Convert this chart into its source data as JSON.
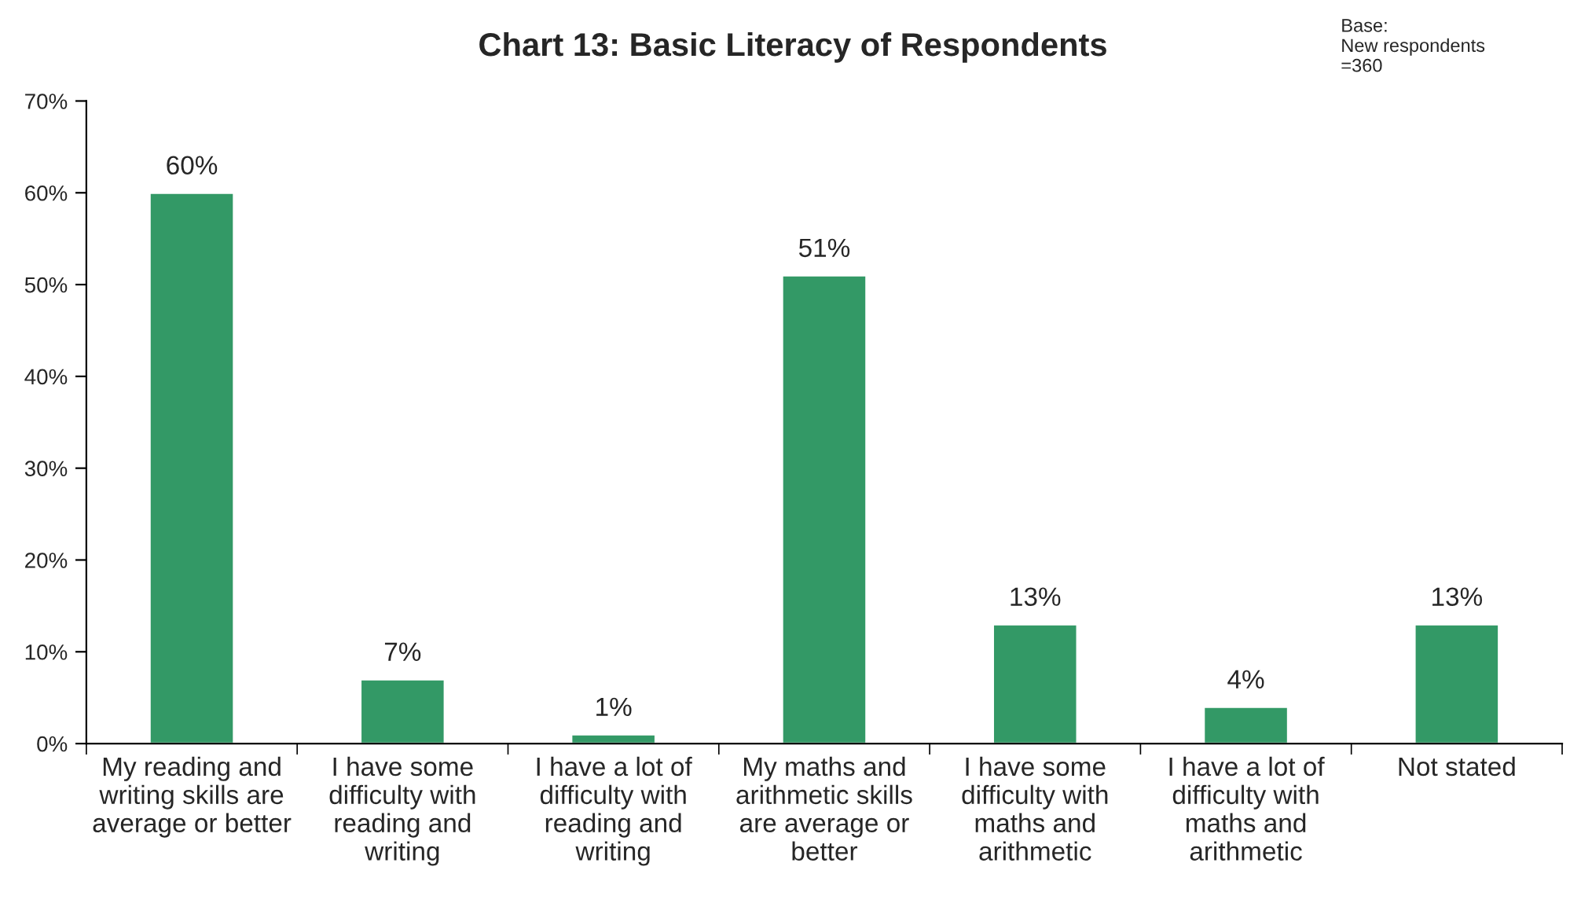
{
  "chart_data": {
    "type": "bar",
    "title": "Chart 13: Basic Literacy of Respondents",
    "annotations": [
      "Base:\nNew respondents\n=360"
    ],
    "categories": [
      "My reading and\nwriting skills are\naverage or better",
      "I have some\ndifficulty with\nreading and\nwriting",
      "I have a lot of\ndifficulty with\nreading and\nwriting",
      "My maths and\narithmetic skills\nare average or\nbetter",
      "I have some\ndifficulty with\nmaths and\narithmetic",
      "I have a lot of\ndifficulty with\nmaths and\narithmetic",
      "Not stated"
    ],
    "values": [
      60,
      7,
      1,
      51,
      13,
      4,
      13
    ],
    "value_labels": [
      "60%",
      "7%",
      "1%",
      "51%",
      "13%",
      "4%",
      "13%"
    ],
    "color": "#339966",
    "ylim": [
      0,
      70
    ],
    "yticks": [
      {
        "value": 0,
        "label": "0%"
      },
      {
        "value": 10,
        "label": "10%"
      },
      {
        "value": 20,
        "label": "20%"
      },
      {
        "value": 30,
        "label": "30%"
      },
      {
        "value": 40,
        "label": "40%"
      },
      {
        "value": 50,
        "label": "50%"
      },
      {
        "value": 60,
        "label": "60%"
      },
      {
        "value": 70,
        "label": "70%"
      }
    ],
    "grid": false,
    "legend": false
  }
}
